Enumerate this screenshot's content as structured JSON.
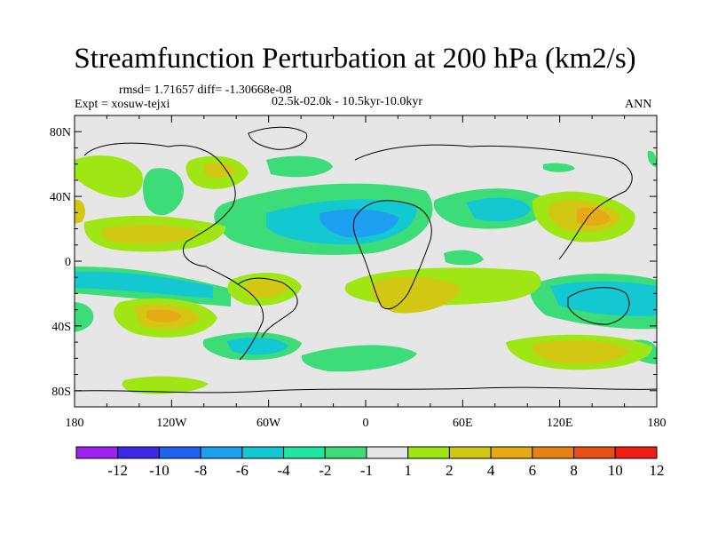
{
  "title": "Streamfunction Perturbation at 200 hPa (km2/s)",
  "stats": "rmsd= 1.71657  diff= -1.30668e-08",
  "expt": "Expt = xosuw-tejxi",
  "period": "02.5k-02.0k - 10.5kyr-10.0kyr",
  "season": "ANN",
  "lat_ticks": [
    "80N",
    "40N",
    "0",
    "40S",
    "80S"
  ],
  "lon_ticks": [
    "180",
    "120W",
    "60W",
    "0",
    "60E",
    "120E",
    "180"
  ],
  "colorbar": {
    "labels": [
      "-12",
      "-10",
      "-8",
      "-6",
      "-4",
      "-2",
      "-1",
      "1",
      "2",
      "4",
      "6",
      "8",
      "10",
      "12"
    ],
    "colors": [
      "#a020f0",
      "#3c28e6",
      "#1e64f0",
      "#1ea0f0",
      "#14c8d2",
      "#1ee6a0",
      "#3cdc78",
      "#e6e6e6",
      "#a0e614",
      "#d2c814",
      "#e6aa14",
      "#e68214",
      "#e65014",
      "#f01e14"
    ]
  },
  "map": {
    "background_color": "#e6e6e6"
  }
}
